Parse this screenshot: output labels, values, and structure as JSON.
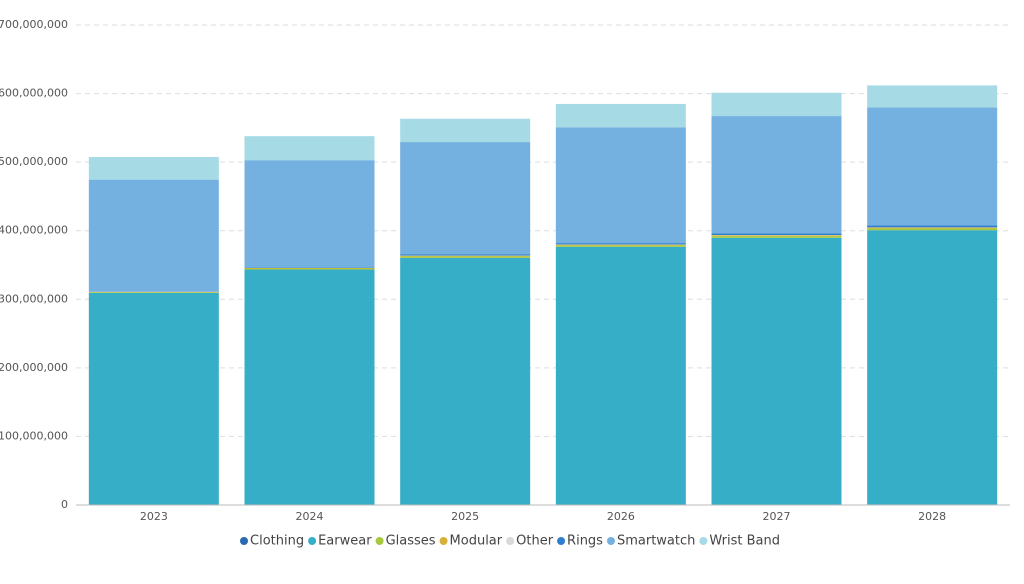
{
  "chart_data": {
    "type": "stacked-bar",
    "categories": [
      "2023",
      "2024",
      "2025",
      "2026",
      "2027",
      "2028"
    ],
    "series": [
      {
        "name": "Clothing",
        "color": "#2a6ab2",
        "values": [
          300000,
          400000,
          500000,
          600000,
          700000,
          800000
        ]
      },
      {
        "name": "Earwear",
        "color": "#37aec7",
        "values": [
          309000000,
          343000000,
          360000000,
          376000000,
          389000000,
          400000000
        ]
      },
      {
        "name": "Glasses",
        "color": "#a9c93c",
        "values": [
          1000000,
          1500000,
          2000000,
          2000000,
          2500000,
          2500000
        ]
      },
      {
        "name": "Modular",
        "color": "#d6b13a",
        "values": [
          500000,
          800000,
          1000000,
          1000000,
          1200000,
          1300000
        ]
      },
      {
        "name": "Other",
        "color": "#d9d9d9",
        "values": [
          200000,
          200000,
          300000,
          300000,
          300000,
          300000
        ]
      },
      {
        "name": "Rings",
        "color": "#2e7fd0",
        "values": [
          500000,
          1000000,
          1500000,
          2000000,
          2500000,
          3000000
        ]
      },
      {
        "name": "Smartwatch",
        "color": "#74b1e1",
        "values": [
          163000000,
          156000000,
          164000000,
          169000000,
          171000000,
          172000000
        ]
      },
      {
        "name": "Wrist Band",
        "color": "#a6dbe6",
        "values": [
          33000000,
          35000000,
          34000000,
          34000000,
          34000000,
          32000000
        ]
      }
    ],
    "ylim": [
      0,
      700000000
    ],
    "yticks": [
      0,
      {
        "value": 100000000,
        "label": "100,000,000"
      },
      {
        "value": 200000000,
        "label": "200,000,000"
      },
      {
        "value": 300000000,
        "label": "300,000,000"
      },
      {
        "value": 400000000,
        "label": "400,000,000"
      },
      {
        "value": 500000000,
        "label": "500,000,000"
      },
      {
        "value": 600000000,
        "label": "600,000,000"
      },
      {
        "value": 700000000,
        "label": "700,000,000"
      }
    ],
    "grid": true,
    "legend": "bottom"
  }
}
